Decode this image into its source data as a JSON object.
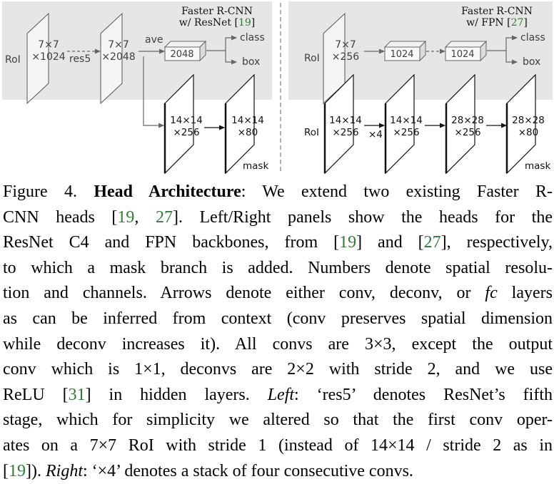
{
  "figure": {
    "left": {
      "title_line1": "Faster R-CNN",
      "title_line2_prefix": "w/ ResNet [",
      "title_ref": "19",
      "title_line2_suffix": "]",
      "roi": "RoI",
      "box1_line1": "7×7",
      "box1_line2": "×1024",
      "res5": "res5",
      "box2_line1": "7×7",
      "box2_line2": "×2048",
      "ave": "ave",
      "fc": "2048",
      "class": "class",
      "box": "box",
      "mask1_line1": "14×14",
      "mask1_line2": "×256",
      "mask2_line1": "14×14",
      "mask2_line2": "×80",
      "mask": "mask"
    },
    "right": {
      "title_line1": "Faster R-CNN",
      "title_line2_prefix": "w/ FPN [",
      "title_ref": "27",
      "title_line2_suffix": "]",
      "roi_top": "RoI",
      "box1_line1": "7×7",
      "box1_line2": "×256",
      "fc1": "1024",
      "fc2": "1024",
      "class": "class",
      "box": "box",
      "roi_bottom": "RoI",
      "m1_line1": "14×14",
      "m1_line2": "×256",
      "x4": "×4",
      "m2_line1": "14×14",
      "m2_line2": "×256",
      "m3_line1": "28×28",
      "m3_line2": "×256",
      "m4_line1": "28×28",
      "m4_line2": "×80",
      "mask": "mask"
    }
  },
  "caption": {
    "l1_a": "Figure 4. ",
    "l1_b": "Head Architecture",
    "l1_c": ": We extend two existing Faster R-",
    "l2_a": "CNN heads [",
    "l2_ref1": "19",
    "l2_b": ", ",
    "l2_ref2": "27",
    "l2_c": "].  Left/Right panels show the heads for the",
    "l3_a": "ResNet C4 and FPN backbones, from [",
    "l3_ref1": "19",
    "l3_b": "] and [",
    "l3_ref2": "27",
    "l3_c": "], respectively,",
    "l4": "to which a mask branch is added. Numbers denote spatial resolu-",
    "l5_a": "tion and channels. Arrows denote either conv, deconv, or ",
    "l5_fc": "fc",
    "l5_b": " layers",
    "l6": "as can be inferred from context (conv preserves spatial dimension",
    "l7": "while deconv increases it).  All convs are 3×3, except the output",
    "l8": "conv which is 1×1, deconvs are 2×2 with stride 2, and we use",
    "l9_a": "ReLU [",
    "l9_ref": "31",
    "l9_b": "] in hidden layers. ",
    "l9_left": "Left",
    "l9_c": ": ‘res5’ denotes ResNet’s fifth",
    "l10": "stage, which for simplicity we altered so that the first conv oper-",
    "l11": "ates on a 7×7 RoI with stride 1 (instead of 14×14 / stride 2 as in",
    "l12_a": "[",
    "l12_ref": "19",
    "l12_b": "]). ",
    "l12_right": "Right",
    "l12_c": ": ‘×4’ denotes a stack of four consecutive convs."
  }
}
